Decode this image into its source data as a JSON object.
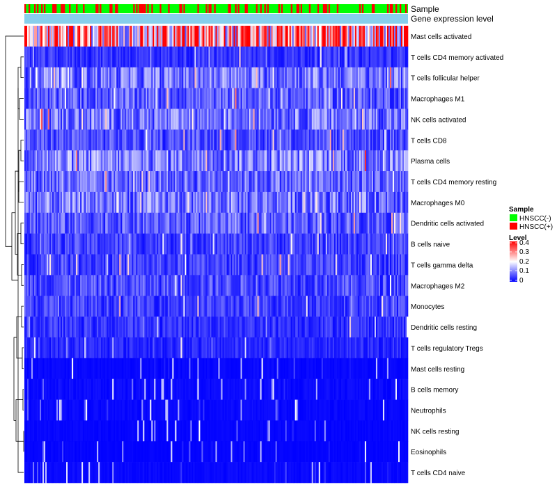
{
  "chart_data": {
    "type": "heatmap",
    "annotation_tracks": [
      {
        "name": "Sample"
      },
      {
        "name": "Gene expression level"
      }
    ],
    "rows": [
      {
        "label": "Mast cells activated",
        "mean": 0.27
      },
      {
        "label": "T cells CD4 memory activated",
        "mean": 0.04
      },
      {
        "label": "T cells follicular helper",
        "mean": 0.09
      },
      {
        "label": "Macrophages M1",
        "mean": 0.07
      },
      {
        "label": "NK cells activated",
        "mean": 0.09
      },
      {
        "label": "T cells CD8",
        "mean": 0.06
      },
      {
        "label": "Plasma cells",
        "mean": 0.1
      },
      {
        "label": "T cells CD4 memory resting",
        "mean": 0.08
      },
      {
        "label": "Macrophages M0",
        "mean": 0.09
      },
      {
        "label": "Dendritic cells activated",
        "mean": 0.07
      },
      {
        "label": "B cells naive",
        "mean": 0.05
      },
      {
        "label": "T cells gamma delta",
        "mean": 0.05
      },
      {
        "label": "Macrophages M2",
        "mean": 0.06
      },
      {
        "label": "Monocytes",
        "mean": 0.05
      },
      {
        "label": "Dendritic cells resting",
        "mean": 0.04
      },
      {
        "label": "T cells regulatory  Tregs",
        "mean": 0.03
      },
      {
        "label": "Mast cells resting",
        "mean": 0.01
      },
      {
        "label": "B cells memory",
        "mean": 0.015
      },
      {
        "label": "Neutrophils",
        "mean": 0.012
      },
      {
        "label": "NK cells resting",
        "mean": 0.008
      },
      {
        "label": "Eosinophils",
        "mean": 0.006
      },
      {
        "label": "T cells CD4 naive",
        "mean": 0.012
      }
    ],
    "legend": {
      "sample": {
        "title": "Sample",
        "items": [
          {
            "label": "HNSCC(-)",
            "color": "#00ff00"
          },
          {
            "label": "HNSCC(+)",
            "color": "#ff0000"
          }
        ]
      },
      "level": {
        "title": "Level",
        "ticks": [
          "0.4",
          "0.3",
          "0.2",
          "0.1",
          "0"
        ],
        "range": [
          0,
          0.4
        ],
        "colors": [
          "#0000ff",
          "#ffffff",
          "#ff0000"
        ]
      }
    },
    "colors": {
      "low": "#0000ff",
      "mid": "#ffffff",
      "high": "#ff0000",
      "annotation_negative": "#00ff00",
      "annotation_positive": "#ff0000",
      "expression_track": "#87ceeb"
    },
    "n_samples": 275
  }
}
